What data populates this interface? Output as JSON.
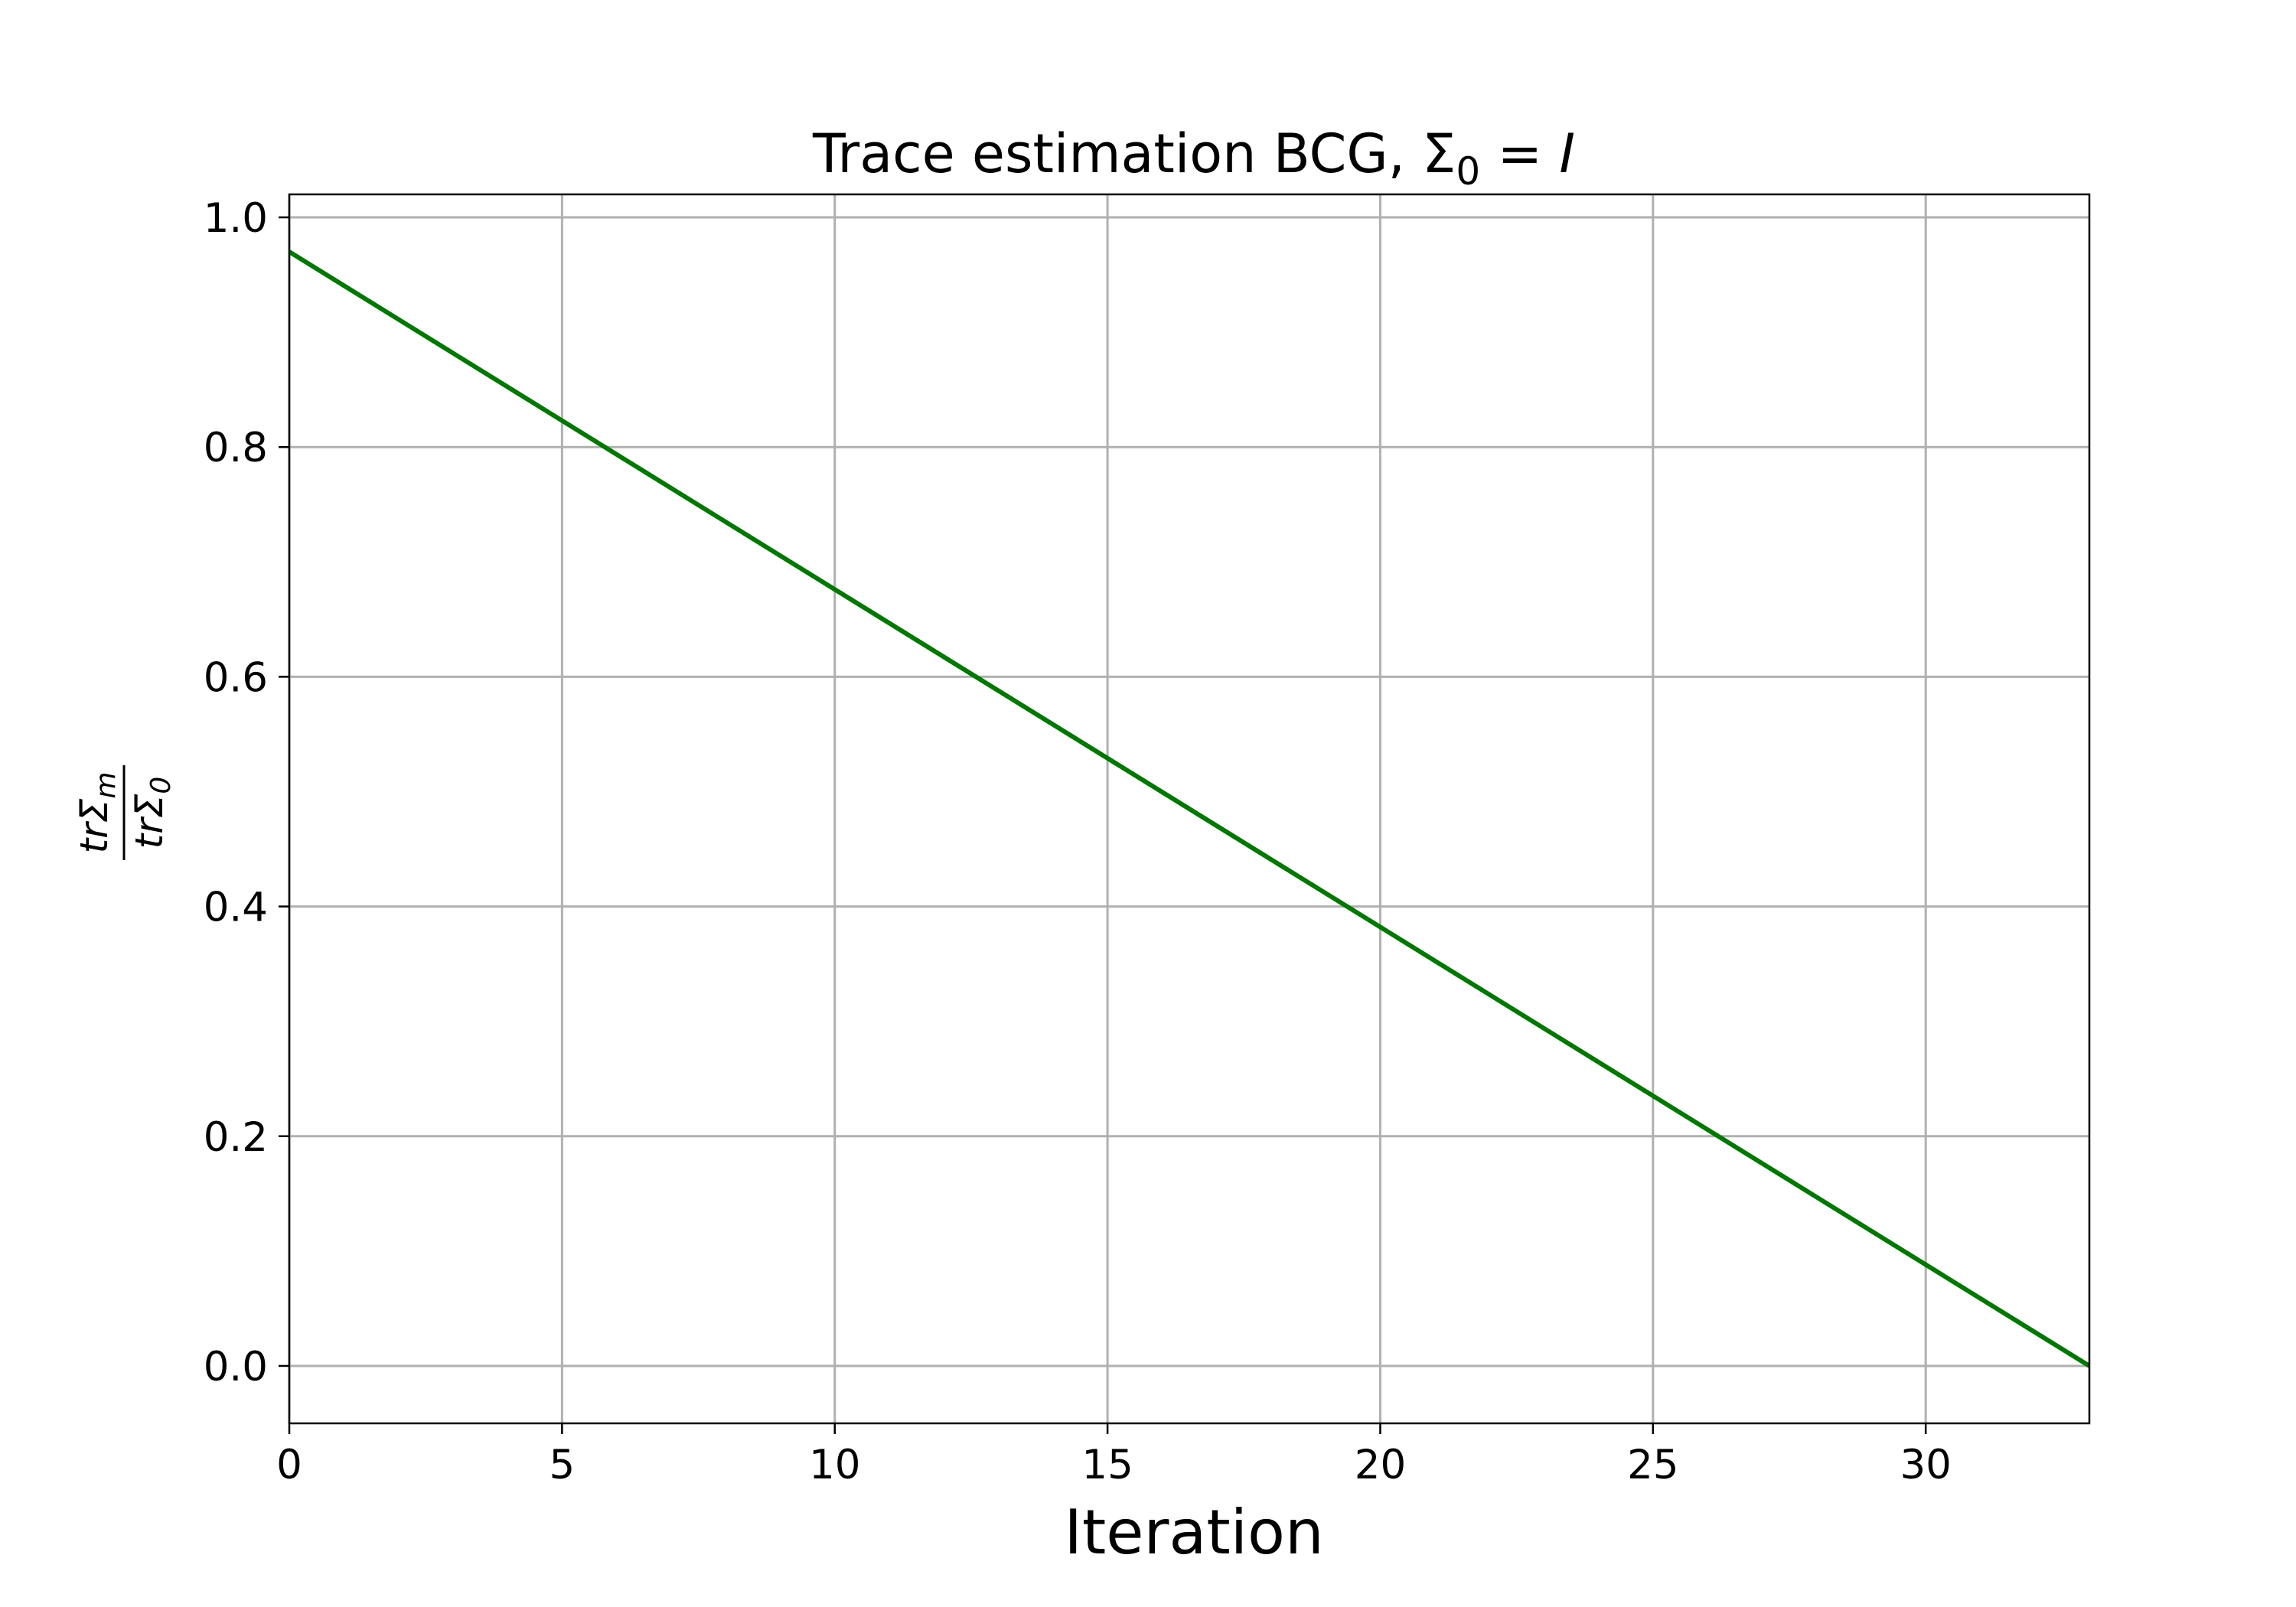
{
  "chart_data": {
    "type": "line",
    "title": "Trace estimation BCG, Σ",
    "title_sub": "0",
    "title_eq": " = ",
    "title_rhs": "I",
    "xlabel": "Iteration",
    "ylabel": {
      "numerator": "trΣ",
      "numerator_sub": "m",
      "denominator": "trΣ",
      "denominator_sub": "0"
    },
    "xlim": [
      0,
      33
    ],
    "ylim": [
      -0.05,
      1.02
    ],
    "xticks": [
      0,
      5,
      10,
      15,
      20,
      25,
      30
    ],
    "xtick_labels": [
      "0",
      "5",
      "10",
      "15",
      "20",
      "25",
      "30"
    ],
    "yticks": [
      0.0,
      0.2,
      0.4,
      0.6,
      0.8,
      1.0
    ],
    "ytick_labels": [
      "0.0",
      "0.2",
      "0.4",
      "0.6",
      "0.8",
      "1.0"
    ],
    "grid": true,
    "series": [
      {
        "color": "#007700",
        "x": [
          0,
          33
        ],
        "y": [
          0.97,
          0.0
        ]
      }
    ]
  }
}
